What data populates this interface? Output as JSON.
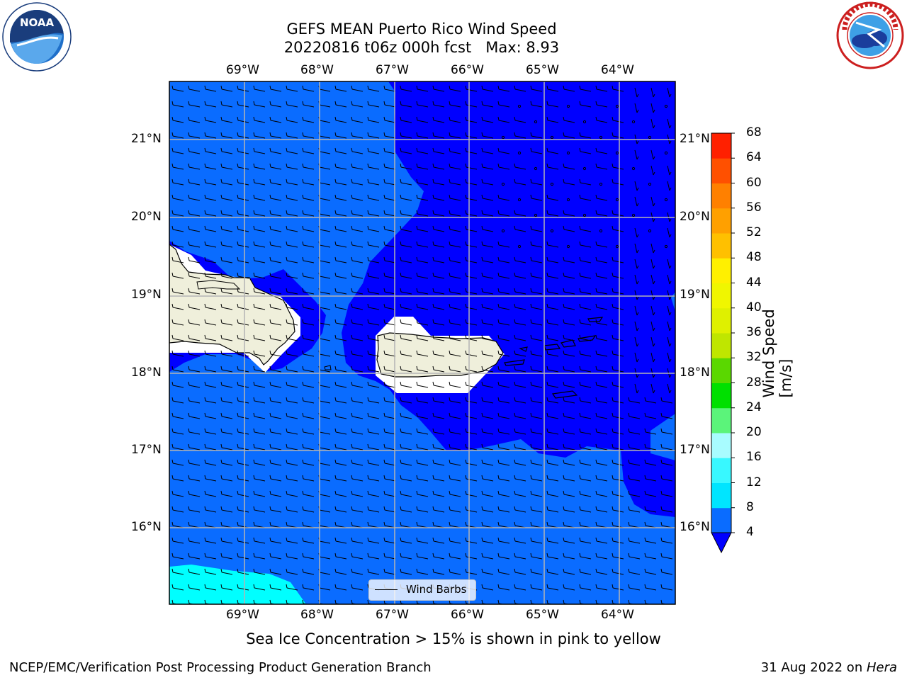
{
  "title": {
    "line1": "GEFS MEAN Puerto Rico Wind Speed",
    "line2": "20220816 t06z 000h fcst   Max: 8.93"
  },
  "axes": {
    "lon_labels": [
      "69°W",
      "68°W",
      "67°W",
      "66°W",
      "65°W",
      "64°W"
    ],
    "lat_labels": [
      "21°N",
      "20°N",
      "19°N",
      "18°N",
      "17°N",
      "16°N"
    ]
  },
  "colorbar": {
    "label": "Wind Speed [m/s]",
    "ticks": [
      "4",
      "8",
      "12",
      "16",
      "20",
      "24",
      "28",
      "32",
      "36",
      "40",
      "44",
      "48",
      "52",
      "56",
      "60",
      "64",
      "68"
    ],
    "colors": [
      "#0a6cff",
      "#00e5ff",
      "#38f8ff",
      "#a8fcff",
      "#5bf47a",
      "#00e000",
      "#5ad800",
      "#bfe600",
      "#dff000",
      "#f0f600",
      "#fff000",
      "#ffc000",
      "#ffa000",
      "#ff8000",
      "#ff5000",
      "#ff2000"
    ],
    "under_color": "#0000ff"
  },
  "field_colors": {
    "speed_4_8": "#0a6cff",
    "speed_below_4": "#0000ff",
    "speed_8_12": "#00ffff",
    "land": "#efefdb",
    "masked": "#ffffff"
  },
  "legend": {
    "label": "Wind Barbs"
  },
  "note": "Sea Ice Concentration > 15% is shown in pink to yellow",
  "footer": {
    "left": "NCEP/EMC/Verification Post Processing Product Generation Branch",
    "right_prefix": "31 Aug 2022 on ",
    "right_machine": "Hera"
  },
  "logos": {
    "noaa": {
      "text": "NOAA",
      "ring_text": "NATIONAL OCEANIC AND ATMOSPHERIC ADMINISTRATION · U.S. DEPARTMENT OF COMMERCE"
    },
    "nws": {
      "ring_text": "NATIONAL WEATHER SERVICE"
    }
  }
}
